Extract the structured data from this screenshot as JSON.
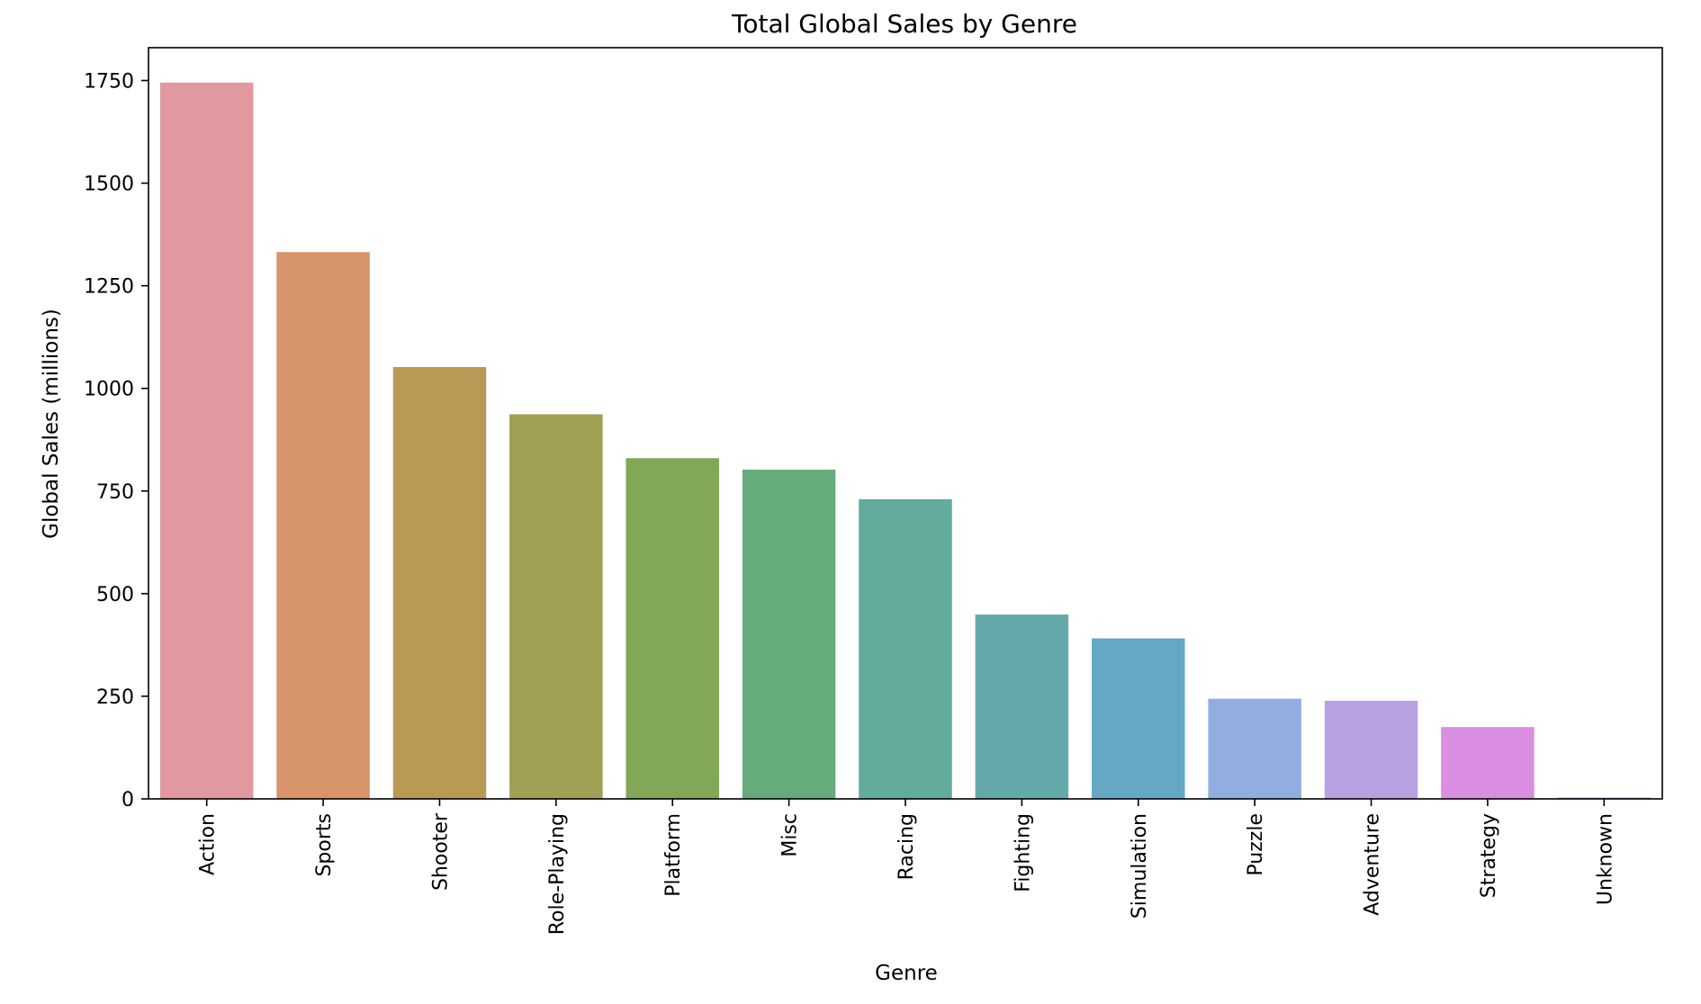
{
  "chart_data": {
    "type": "bar",
    "title": "Total Global Sales by Genre",
    "xlabel": "Genre",
    "ylabel": "Global Sales (millions)",
    "categories": [
      "Action",
      "Sports",
      "Shooter",
      "Role-Playing",
      "Platform",
      "Misc",
      "Racing",
      "Fighting",
      "Simulation",
      "Puzzle",
      "Adventure",
      "Strategy",
      "Unknown"
    ],
    "values": [
      1745,
      1332,
      1052,
      937,
      830,
      802,
      730,
      449,
      391,
      244,
      239,
      175,
      3
    ],
    "colors": [
      "#e1989f",
      "#d8946a",
      "#b89a55",
      "#a0a055",
      "#82a757",
      "#66ab7c",
      "#63ab9c",
      "#64a9aa",
      "#65a8c4",
      "#92aee0",
      "#b9a2e1",
      "#d98ee1",
      "#c970b7"
    ],
    "ylim": [
      0,
      1830
    ],
    "yticks": [
      0,
      250,
      500,
      750,
      1000,
      1250,
      1500,
      1750
    ],
    "ytick_labels": [
      "0",
      "250",
      "500",
      "750",
      "1000",
      "1250",
      "1500",
      "1750"
    ],
    "grid": false,
    "legend": "none"
  }
}
